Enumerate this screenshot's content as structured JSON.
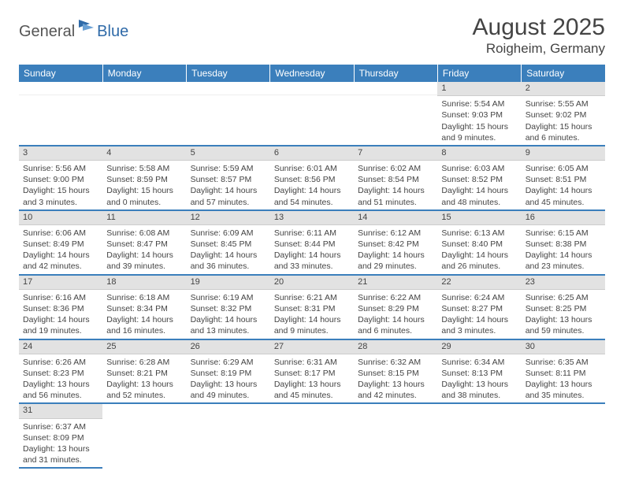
{
  "logo": {
    "text1": "General",
    "text2": "Blue"
  },
  "title": "August 2025",
  "location": "Roigheim, Germany",
  "colors": {
    "header_bg": "#3b7fbc",
    "header_text": "#ffffff",
    "daynum_bg": "#e2e2e2",
    "border": "#3b7fbc",
    "logo_accent": "#2f6aa8",
    "body_text": "#444444"
  },
  "weekdays": [
    "Sunday",
    "Monday",
    "Tuesday",
    "Wednesday",
    "Thursday",
    "Friday",
    "Saturday"
  ],
  "weeks": [
    [
      null,
      null,
      null,
      null,
      null,
      {
        "n": "1",
        "sr": "5:54 AM",
        "ss": "9:03 PM",
        "dl": "15 hours and 9 minutes."
      },
      {
        "n": "2",
        "sr": "5:55 AM",
        "ss": "9:02 PM",
        "dl": "15 hours and 6 minutes."
      }
    ],
    [
      {
        "n": "3",
        "sr": "5:56 AM",
        "ss": "9:00 PM",
        "dl": "15 hours and 3 minutes."
      },
      {
        "n": "4",
        "sr": "5:58 AM",
        "ss": "8:59 PM",
        "dl": "15 hours and 0 minutes."
      },
      {
        "n": "5",
        "sr": "5:59 AM",
        "ss": "8:57 PM",
        "dl": "14 hours and 57 minutes."
      },
      {
        "n": "6",
        "sr": "6:01 AM",
        "ss": "8:56 PM",
        "dl": "14 hours and 54 minutes."
      },
      {
        "n": "7",
        "sr": "6:02 AM",
        "ss": "8:54 PM",
        "dl": "14 hours and 51 minutes."
      },
      {
        "n": "8",
        "sr": "6:03 AM",
        "ss": "8:52 PM",
        "dl": "14 hours and 48 minutes."
      },
      {
        "n": "9",
        "sr": "6:05 AM",
        "ss": "8:51 PM",
        "dl": "14 hours and 45 minutes."
      }
    ],
    [
      {
        "n": "10",
        "sr": "6:06 AM",
        "ss": "8:49 PM",
        "dl": "14 hours and 42 minutes."
      },
      {
        "n": "11",
        "sr": "6:08 AM",
        "ss": "8:47 PM",
        "dl": "14 hours and 39 minutes."
      },
      {
        "n": "12",
        "sr": "6:09 AM",
        "ss": "8:45 PM",
        "dl": "14 hours and 36 minutes."
      },
      {
        "n": "13",
        "sr": "6:11 AM",
        "ss": "8:44 PM",
        "dl": "14 hours and 33 minutes."
      },
      {
        "n": "14",
        "sr": "6:12 AM",
        "ss": "8:42 PM",
        "dl": "14 hours and 29 minutes."
      },
      {
        "n": "15",
        "sr": "6:13 AM",
        "ss": "8:40 PM",
        "dl": "14 hours and 26 minutes."
      },
      {
        "n": "16",
        "sr": "6:15 AM",
        "ss": "8:38 PM",
        "dl": "14 hours and 23 minutes."
      }
    ],
    [
      {
        "n": "17",
        "sr": "6:16 AM",
        "ss": "8:36 PM",
        "dl": "14 hours and 19 minutes."
      },
      {
        "n": "18",
        "sr": "6:18 AM",
        "ss": "8:34 PM",
        "dl": "14 hours and 16 minutes."
      },
      {
        "n": "19",
        "sr": "6:19 AM",
        "ss": "8:32 PM",
        "dl": "14 hours and 13 minutes."
      },
      {
        "n": "20",
        "sr": "6:21 AM",
        "ss": "8:31 PM",
        "dl": "14 hours and 9 minutes."
      },
      {
        "n": "21",
        "sr": "6:22 AM",
        "ss": "8:29 PM",
        "dl": "14 hours and 6 minutes."
      },
      {
        "n": "22",
        "sr": "6:24 AM",
        "ss": "8:27 PM",
        "dl": "14 hours and 3 minutes."
      },
      {
        "n": "23",
        "sr": "6:25 AM",
        "ss": "8:25 PM",
        "dl": "13 hours and 59 minutes."
      }
    ],
    [
      {
        "n": "24",
        "sr": "6:26 AM",
        "ss": "8:23 PM",
        "dl": "13 hours and 56 minutes."
      },
      {
        "n": "25",
        "sr": "6:28 AM",
        "ss": "8:21 PM",
        "dl": "13 hours and 52 minutes."
      },
      {
        "n": "26",
        "sr": "6:29 AM",
        "ss": "8:19 PM",
        "dl": "13 hours and 49 minutes."
      },
      {
        "n": "27",
        "sr": "6:31 AM",
        "ss": "8:17 PM",
        "dl": "13 hours and 45 minutes."
      },
      {
        "n": "28",
        "sr": "6:32 AM",
        "ss": "8:15 PM",
        "dl": "13 hours and 42 minutes."
      },
      {
        "n": "29",
        "sr": "6:34 AM",
        "ss": "8:13 PM",
        "dl": "13 hours and 38 minutes."
      },
      {
        "n": "30",
        "sr": "6:35 AM",
        "ss": "8:11 PM",
        "dl": "13 hours and 35 minutes."
      }
    ],
    [
      {
        "n": "31",
        "sr": "6:37 AM",
        "ss": "8:09 PM",
        "dl": "13 hours and 31 minutes."
      },
      null,
      null,
      null,
      null,
      null,
      null
    ]
  ],
  "labels": {
    "sunrise": "Sunrise:",
    "sunset": "Sunset:",
    "daylight": "Daylight:"
  }
}
